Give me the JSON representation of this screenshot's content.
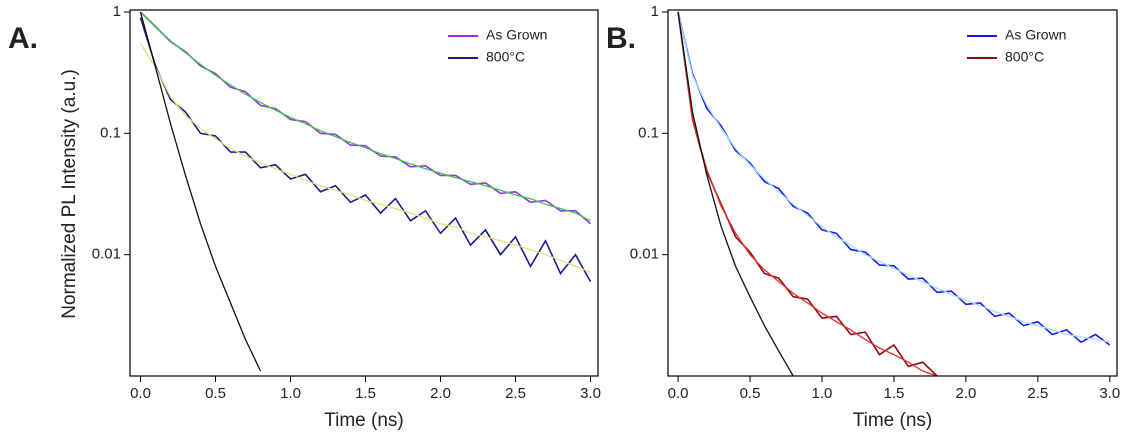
{
  "chart_data": [
    {
      "type": "line",
      "label": "A.",
      "ylabel": "Normalized PL Intensity (a.u.)",
      "xlabel": "Time (ns)",
      "log_y": true,
      "legend": "upper right",
      "xlim": [
        -0.07,
        3.05
      ],
      "ylim": [
        0.001,
        1
      ],
      "xticks": [
        {
          "value": 0,
          "label": "0.0"
        },
        {
          "value": 0.5,
          "label": "0.5"
        },
        {
          "value": 1,
          "label": "1.0"
        },
        {
          "value": 1.5,
          "label": "1.5"
        },
        {
          "value": 2,
          "label": "2.0"
        },
        {
          "value": 2.5,
          "label": "2.5"
        },
        {
          "value": 3,
          "label": "3.0"
        }
      ],
      "yticks": [
        0.01,
        0.1,
        1
      ],
      "x": [
        0,
        0.1,
        0.2,
        0.3,
        0.4,
        0.5,
        0.6,
        0.7,
        0.8,
        0.9,
        1,
        1.1,
        1.2,
        1.3,
        1.4,
        1.5,
        1.6,
        1.7,
        1.8,
        1.9,
        2,
        2.1,
        2.2,
        2.3,
        2.4,
        2.5,
        2.6,
        2.7,
        2.8,
        2.9,
        3
      ],
      "series": [
        {
          "name": "As Grown",
          "color": "#9b30e8",
          "values": [
            1,
            0.76,
            0.57,
            0.47,
            0.36,
            0.31,
            0.24,
            0.22,
            0.17,
            0.16,
            0.13,
            0.125,
            0.1,
            0.098,
            0.08,
            0.079,
            0.065,
            0.064,
            0.053,
            0.054,
            0.045,
            0.045,
            0.038,
            0.039,
            0.032,
            0.033,
            0.027,
            0.028,
            0.023,
            0.023,
            0.018
          ]
        },
        {
          "name": "800°C",
          "color": "#1c1c8e",
          "values": [
            0.9,
            0.36,
            0.19,
            0.15,
            0.1,
            0.095,
            0.07,
            0.07,
            0.052,
            0.055,
            0.042,
            0.046,
            0.033,
            0.037,
            0.027,
            0.031,
            0.022,
            0.029,
            0.019,
            0.023,
            0.015,
            0.02,
            0.012,
            0.016,
            0.01,
            0.014,
            0.008,
            0.013,
            0.007,
            0.01,
            0.006
          ]
        },
        {
          "color": "#3cc84a",
          "values": [
            1,
            0.75,
            0.58,
            0.46,
            0.37,
            0.3,
            0.25,
            0.21,
            0.18,
            0.155,
            0.135,
            0.12,
            0.105,
            0.094,
            0.084,
            0.076,
            0.068,
            0.062,
            0.056,
            0.051,
            0.047,
            0.043,
            0.04,
            0.037,
            0.034,
            0.031,
            0.029,
            0.026,
            0.024,
            0.022,
            0.019
          ]
        },
        {
          "color": "#e8e07a",
          "values": [
            0.55,
            0.35,
            0.2,
            0.14,
            0.11,
            0.09,
            0.075,
            0.065,
            0.057,
            0.051,
            0.046,
            0.041,
            0.037,
            0.034,
            0.031,
            0.028,
            0.026,
            0.024,
            0.022,
            0.02,
            0.018,
            0.017,
            0.015,
            0.014,
            0.013,
            0.012,
            0.011,
            0.01,
            0.009,
            0.008,
            0.0072
          ]
        },
        {
          "color": "#111111",
          "values": [
            1,
            0.35,
            0.12,
            0.045,
            0.018,
            0.008,
            0.004,
            0.002,
            0.0011,
            null,
            null,
            null,
            null,
            null,
            null,
            null,
            null,
            null,
            null,
            null,
            null,
            null,
            null,
            null,
            null,
            null,
            null,
            null,
            null,
            null,
            null
          ]
        }
      ]
    },
    {
      "type": "line",
      "label": "B.",
      "xlabel": "Time (ns)",
      "log_y": true,
      "legend": "upper right",
      "xlim": [
        -0.07,
        3.05
      ],
      "ylim": [
        0.001,
        1
      ],
      "xticks": [
        {
          "value": 0,
          "label": "0.0"
        },
        {
          "value": 0.5,
          "label": "0.5"
        },
        {
          "value": 1,
          "label": "1.0"
        },
        {
          "value": 1.5,
          "label": "1.5"
        },
        {
          "value": 2,
          "label": "2.0"
        },
        {
          "value": 2.5,
          "label": "2.5"
        },
        {
          "value": 3,
          "label": "3.0"
        }
      ],
      "yticks": [
        0.01,
        0.1,
        1
      ],
      "x": [
        0,
        0.1,
        0.2,
        0.3,
        0.4,
        0.5,
        0.6,
        0.7,
        0.8,
        0.9,
        1,
        1.1,
        1.2,
        1.3,
        1.4,
        1.5,
        1.6,
        1.7,
        1.8,
        1.9,
        2,
        2.1,
        2.2,
        2.3,
        2.4,
        2.5,
        2.6,
        2.7,
        2.8,
        2.9,
        3
      ],
      "series": [
        {
          "name": "As Grown",
          "color": "#1a1aee",
          "values": [
            1,
            0.31,
            0.16,
            0.115,
            0.072,
            0.057,
            0.04,
            0.035,
            0.025,
            0.022,
            0.016,
            0.015,
            0.011,
            0.0105,
            0.0082,
            0.0081,
            0.0063,
            0.0064,
            0.0049,
            0.005,
            0.0039,
            0.004,
            0.0031,
            0.0033,
            0.0026,
            0.0028,
            0.0022,
            0.0024,
            0.0019,
            0.0022,
            0.0018
          ]
        },
        {
          "name": "800°C",
          "color": "#8b1010",
          "values": [
            1,
            0.13,
            0.048,
            0.026,
            0.014,
            0.0105,
            0.007,
            0.0064,
            0.0045,
            0.0043,
            0.003,
            0.0031,
            0.0022,
            0.0023,
            0.0015,
            0.0018,
            0.0012,
            0.0013,
            0.001,
            null,
            null,
            null,
            null,
            null,
            null,
            null,
            null,
            null,
            null,
            null,
            null
          ]
        },
        {
          "color": "#a8e0ff",
          "values": [
            1,
            0.3,
            0.17,
            0.11,
            0.075,
            0.055,
            0.042,
            0.033,
            0.026,
            0.021,
            0.017,
            0.014,
            0.012,
            0.01,
            0.0088,
            0.0077,
            0.0068,
            0.006,
            0.0053,
            0.0047,
            0.0042,
            0.0038,
            0.0034,
            0.0031,
            0.0028,
            0.0026,
            0.0024,
            0.0022,
            0.0021,
            0.002,
            0.0019
          ]
        },
        {
          "color": "#e03030",
          "values": [
            1,
            0.13,
            0.05,
            0.025,
            0.015,
            0.01,
            0.0075,
            0.006,
            0.0048,
            0.004,
            0.0033,
            0.0028,
            0.0024,
            0.002,
            0.0017,
            0.0015,
            0.0013,
            0.0011,
            0.001,
            null,
            null,
            null,
            null,
            null,
            null,
            null,
            null,
            null,
            null,
            null,
            null
          ]
        },
        {
          "color": "#111111",
          "values": [
            1,
            0.15,
            0.045,
            0.017,
            0.008,
            0.0045,
            0.0026,
            0.0016,
            0.001,
            null,
            null,
            null,
            null,
            null,
            null,
            null,
            null,
            null,
            null,
            null,
            null,
            null,
            null,
            null,
            null,
            null,
            null,
            null,
            null,
            null,
            null
          ]
        }
      ]
    }
  ]
}
